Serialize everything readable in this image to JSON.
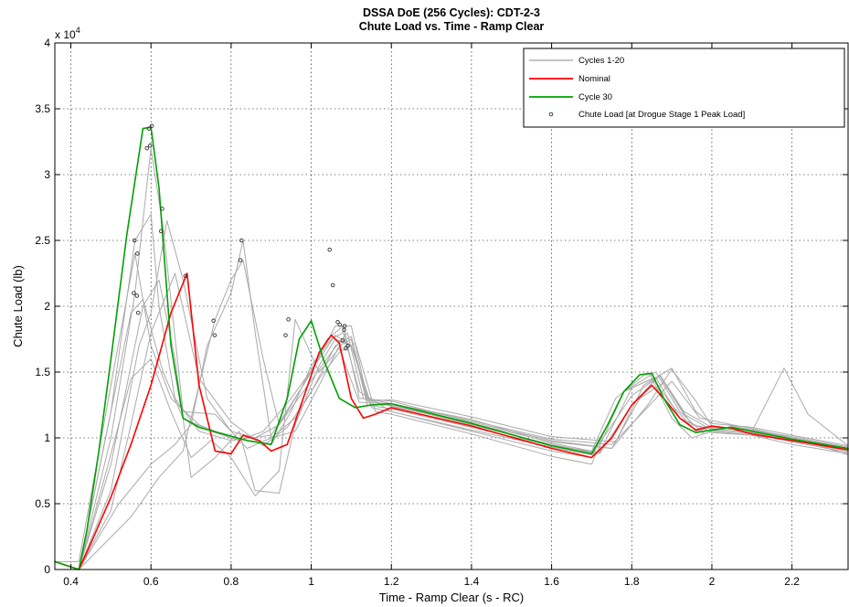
{
  "chart_data": {
    "type": "line",
    "title": [
      "DSSA DoE (256 Cycles): CDT-2-3",
      "Chute Load vs. Time - Ramp Clear"
    ],
    "xlabel": "Time - Ramp Clear (s - RC)",
    "ylabel": "Chute Load (lb)",
    "y_exponent_label": "x 10",
    "y_exponent_power": "4",
    "xlim": [
      0.36,
      2.34
    ],
    "ylim": [
      0,
      40000
    ],
    "x_ticks": [
      0.4,
      0.6,
      0.8,
      1.0,
      1.2,
      1.4,
      1.6,
      1.8,
      2.0,
      2.2
    ],
    "x_tick_labels": [
      "0.4",
      "0.6",
      "0.8",
      "1",
      "1.2",
      "1.4",
      "1.6",
      "1.8",
      "2",
      "2.2"
    ],
    "y_ticks": [
      0,
      5000,
      10000,
      15000,
      20000,
      25000,
      30000,
      35000,
      40000
    ],
    "y_tick_labels": [
      "0",
      "0.5",
      "1",
      "1.5",
      "2",
      "2.5",
      "3",
      "3.5",
      "4"
    ],
    "grid": true,
    "legend_position": "top-right",
    "legend": [
      {
        "label": "Cycles 1-20",
        "color": "#b0b0b0",
        "style": "line"
      },
      {
        "label": "Nominal",
        "color": "#ff0000",
        "style": "line"
      },
      {
        "label": "Cycle 30",
        "color": "#00a000",
        "style": "line"
      },
      {
        "label": "Chute Load [at Drogue Stage 1 Peak Load]",
        "color": "#333333",
        "style": "marker"
      }
    ],
    "series": [
      {
        "name": "Cycles 1-20",
        "color": "#aaaaaa",
        "x": [
          0.36,
          0.42,
          0.5,
          0.56,
          0.6,
          0.65,
          0.72,
          0.8,
          0.9,
          0.95,
          1.0,
          1.05,
          1.08,
          1.12,
          1.2,
          1.4,
          1.6,
          1.7,
          1.78,
          1.85,
          1.9,
          1.95,
          2.0,
          2.1,
          2.2,
          2.34
        ],
        "y": [
          600,
          600,
          14000,
          24000,
          17000,
          13000,
          11000,
          10000,
          9500,
          12000,
          15500,
          17500,
          18000,
          13500,
          12000,
          10500,
          9000,
          8500,
          13500,
          14500,
          11500,
          10000,
          10500,
          10200,
          9500,
          8800
        ]
      },
      {
        "name": "Cycles 1-20",
        "color": "#aaaaaa",
        "x": [
          0.42,
          0.48,
          0.55,
          0.58,
          0.63,
          0.68,
          0.75,
          0.82,
          0.88,
          0.95,
          1.02,
          1.06,
          1.1,
          1.15,
          1.2,
          1.4,
          1.6,
          1.72,
          1.8,
          1.87,
          1.93,
          2.0,
          2.1,
          2.2,
          2.34
        ],
        "y": [
          0,
          9000,
          19500,
          20500,
          15000,
          11500,
          10500,
          9800,
          10500,
          13000,
          16000,
          17800,
          17000,
          12500,
          12500,
          11000,
          9500,
          8800,
          12500,
          14800,
          12000,
          10800,
          10600,
          10000,
          9200
        ]
      },
      {
        "name": "Cycles 1-20",
        "color": "#aaaaaa",
        "x": [
          0.42,
          0.5,
          0.56,
          0.6,
          0.62,
          0.66,
          0.72,
          0.8,
          0.9,
          0.98,
          1.04,
          1.08,
          1.12,
          1.2,
          1.4,
          1.6,
          1.75,
          1.82,
          1.88,
          1.95,
          2.0,
          2.1,
          2.2,
          2.34
        ],
        "y": [
          0,
          12000,
          25000,
          27000,
          20000,
          13000,
          10500,
          9800,
          10200,
          14000,
          17500,
          18500,
          13000,
          12800,
          11200,
          9800,
          9200,
          13000,
          14200,
          11000,
          10700,
          10400,
          9900,
          9100
        ]
      },
      {
        "name": "Cycles 1-20",
        "color": "#aaaaaa",
        "x": [
          0.42,
          0.5,
          0.57,
          0.6,
          0.64,
          0.68,
          0.74,
          0.8,
          0.86,
          0.92,
          1.0,
          1.06,
          1.1,
          1.14,
          1.2,
          1.4,
          1.6,
          1.7,
          1.76,
          1.84,
          1.9,
          1.96,
          2.0,
          2.1,
          2.2,
          2.34
        ],
        "y": [
          0,
          6000,
          17000,
          19500,
          26500,
          22000,
          13000,
          10500,
          10000,
          11000,
          15000,
          18500,
          18500,
          13000,
          12600,
          11400,
          9600,
          9000,
          13000,
          15000,
          12500,
          10500,
          10800,
          10600,
          10100,
          9300
        ]
      },
      {
        "name": "Cycles 1-20",
        "color": "#aaaaaa",
        "x": [
          0.42,
          0.52,
          0.6,
          0.66,
          0.7,
          0.74,
          0.8,
          0.83,
          0.86,
          0.9,
          0.96,
          1.02,
          1.07,
          1.1,
          1.14,
          1.2,
          1.4,
          1.6,
          1.72,
          1.8,
          1.86,
          1.92,
          2.0,
          2.1,
          2.2,
          2.34
        ],
        "y": [
          0,
          5000,
          8000,
          9500,
          11000,
          17000,
          21000,
          25000,
          18000,
          10000,
          10500,
          14000,
          17000,
          17500,
          12500,
          12200,
          10800,
          9400,
          8900,
          13800,
          14600,
          11500,
          10400,
          10200,
          9800,
          9000
        ]
      },
      {
        "name": "Cycles 1-20",
        "color": "#aaaaaa",
        "x": [
          0.42,
          0.55,
          0.62,
          0.68,
          0.72,
          0.76,
          0.8,
          0.83,
          0.88,
          0.92,
          0.98,
          1.05,
          1.09,
          1.13,
          1.2,
          1.4,
          1.6,
          1.75,
          1.84,
          1.9,
          1.96,
          2.0,
          2.1,
          2.18,
          2.24,
          2.34
        ],
        "y": [
          0,
          4000,
          7000,
          9000,
          14000,
          19000,
          22000,
          23500,
          16000,
          11000,
          13500,
          16500,
          18000,
          13000,
          12400,
          11100,
          9700,
          9200,
          12500,
          15200,
          12800,
          10900,
          10500,
          15300,
          11800,
          9400
        ]
      },
      {
        "name": "Cycles 1-20",
        "color": "#aaaaaa",
        "x": [
          0.42,
          0.5,
          0.58,
          0.62,
          0.66,
          0.7,
          0.76,
          0.82,
          0.86,
          0.92,
          0.96,
          1.02,
          1.06,
          1.1,
          1.15,
          1.2,
          1.4,
          1.6,
          1.7,
          1.8,
          1.87,
          1.93,
          2.0,
          2.1,
          2.2,
          2.34
        ],
        "y": [
          0,
          8000,
          20000,
          22000,
          16000,
          7000,
          8500,
          10500,
          6000,
          5800,
          11000,
          15500,
          17500,
          17000,
          12300,
          12000,
          10600,
          9300,
          8700,
          13200,
          14700,
          11800,
          10600,
          10300,
          9700,
          8900
        ]
      },
      {
        "name": "Cycles 1-20",
        "color": "#aaaaaa",
        "x": [
          0.42,
          0.48,
          0.55,
          0.6,
          0.65,
          0.7,
          0.75,
          0.8,
          0.86,
          0.92,
          0.96,
          1.02,
          1.07,
          1.12,
          1.2,
          1.4,
          1.6,
          1.75,
          1.83,
          1.9,
          1.97,
          2.05,
          2.1,
          2.2,
          2.34
        ],
        "y": [
          0,
          6500,
          14500,
          16000,
          12000,
          8500,
          9800,
          8500,
          5600,
          7500,
          19000,
          15000,
          16800,
          12700,
          12600,
          11300,
          9900,
          9500,
          12000,
          14300,
          11500,
          11000,
          10700,
          10000,
          9200
        ]
      },
      {
        "name": "Cycles 1-20",
        "color": "#aaaaaa",
        "x": [
          0.42,
          0.5,
          0.56,
          0.6,
          0.63,
          0.68,
          0.76,
          0.84,
          0.9,
          0.96,
          1.02,
          1.07,
          1.11,
          1.16,
          1.2,
          1.4,
          1.6,
          1.7,
          1.78,
          1.86,
          1.92,
          1.98,
          2.05,
          2.15,
          2.25,
          2.34
        ],
        "y": [
          0,
          10000,
          21000,
          32000,
          26000,
          12000,
          11800,
          9200,
          10000,
          11500,
          14500,
          16500,
          17200,
          12000,
          11800,
          10300,
          8600,
          8000,
          13500,
          15000,
          12000,
          10300,
          10900,
          10300,
          9600,
          8700
        ]
      },
      {
        "name": "Cycles 1-20",
        "color": "#aaaaaa",
        "x": [
          0.42,
          0.5,
          0.55,
          0.6,
          0.66,
          0.72,
          0.8,
          0.88,
          0.94,
          1.0,
          1.06,
          1.1,
          1.14,
          1.2,
          1.4,
          1.6,
          1.76,
          1.83,
          1.9,
          1.96,
          2.0,
          2.1,
          2.2,
          2.34
        ],
        "y": [
          0,
          4500,
          11000,
          18000,
          22500,
          14500,
          11200,
          9400,
          10800,
          13500,
          17000,
          17700,
          12800,
          12900,
          11600,
          10100,
          9700,
          14000,
          15300,
          12000,
          11100,
          10800,
          10200,
          9400
        ]
      },
      {
        "name": "Nominal",
        "color": "#ff0000",
        "x": [
          0.36,
          0.42,
          0.45,
          0.5,
          0.55,
          0.6,
          0.65,
          0.69,
          0.72,
          0.76,
          0.8,
          0.83,
          0.87,
          0.9,
          0.94,
          0.98,
          1.02,
          1.05,
          1.07,
          1.1,
          1.13,
          1.16,
          1.2,
          1.4,
          1.6,
          1.7,
          1.75,
          1.8,
          1.85,
          1.88,
          1.92,
          1.96,
          2.0,
          2.05,
          2.1,
          2.2,
          2.34
        ],
        "y": [
          600,
          0,
          2000,
          5500,
          9500,
          14000,
          19500,
          22500,
          14000,
          9000,
          8800,
          10200,
          9800,
          9000,
          9500,
          13000,
          16500,
          17800,
          17200,
          13000,
          11500,
          11800,
          12300,
          10900,
          9200,
          8500,
          10000,
          12500,
          14000,
          13000,
          11500,
          10600,
          10900,
          10700,
          10300,
          9800,
          9100
        ]
      },
      {
        "name": "Cycle 30",
        "color": "#00a000",
        "x": [
          0.36,
          0.42,
          0.44,
          0.47,
          0.5,
          0.54,
          0.58,
          0.6,
          0.62,
          0.65,
          0.68,
          0.72,
          0.78,
          0.84,
          0.9,
          0.94,
          0.97,
          1.0,
          1.03,
          1.07,
          1.11,
          1.15,
          1.2,
          1.4,
          1.6,
          1.7,
          1.74,
          1.78,
          1.82,
          1.85,
          1.88,
          1.92,
          1.96,
          2.0,
          2.05,
          2.1,
          2.2,
          2.34
        ],
        "y": [
          600,
          0,
          3000,
          9000,
          16000,
          25500,
          33500,
          33600,
          29000,
          17000,
          11500,
          10800,
          10300,
          9800,
          9500,
          13000,
          17500,
          18900,
          16000,
          13000,
          12300,
          12500,
          12600,
          11100,
          9400,
          8800,
          11000,
          13500,
          14800,
          14900,
          13000,
          11000,
          10400,
          10600,
          10800,
          10500,
          9900,
          9200
        ]
      }
    ],
    "markers": {
      "name": "Chute Load [at Drogue Stage 1 Peak Load]",
      "x": [
        0.595,
        0.602,
        0.59,
        0.598,
        0.559,
        0.566,
        0.557,
        0.565,
        0.568,
        0.628,
        0.625,
        0.686,
        0.826,
        0.823,
        0.756,
        0.759,
        0.943,
        0.936,
        1.046,
        1.054,
        1.066,
        1.071,
        1.083,
        1.091,
        1.086,
        1.082,
        1.078
      ],
      "y": [
        33500,
        33700,
        32000,
        32200,
        25000,
        24000,
        21000,
        20800,
        19500,
        27400,
        25700,
        22300,
        25000,
        23500,
        18900,
        17800,
        19000,
        17800,
        24300,
        21600,
        18800,
        18600,
        18500,
        17000,
        16800,
        18200,
        17400
      ]
    }
  }
}
